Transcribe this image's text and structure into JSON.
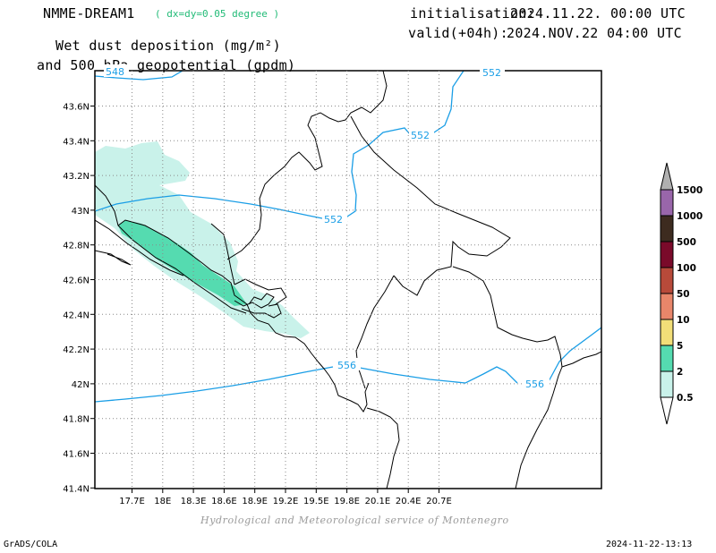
{
  "header": {
    "model": "NMME-DREAM1",
    "resolution": "( dx=dy=0.05 degree )",
    "init_label": "initialisation:",
    "init_value": "2024.11.22. 00:00 UTC",
    "valid_label": "valid(+04h):",
    "valid_value": "2024.NOV.22 04:00 UTC",
    "title_line1": "Wet dust deposition (mg/m²)",
    "title_line2": "and 500 hPa geopotential (gpdm)"
  },
  "map": {
    "lon_ticks": [
      "17.7E",
      "18E",
      "18.3E",
      "18.6E",
      "18.9E",
      "19.2E",
      "19.5E",
      "19.8E",
      "20.1E",
      "20.4E",
      "20.7E"
    ],
    "lat_ticks": [
      "43.6N",
      "43.4N",
      "43.2N",
      "43N",
      "42.8N",
      "42.6N",
      "42.4N",
      "42.2N",
      "42N",
      "41.8N",
      "41.6N",
      "41.4N"
    ],
    "contour_labels": [
      "548",
      "552",
      "552",
      "552",
      "556",
      "556"
    ],
    "contour_color": "#1a9ee6"
  },
  "legend": {
    "labels": [
      "1500",
      "1000",
      "500",
      "100",
      "50",
      "10",
      "5",
      "2",
      "0.5"
    ],
    "colors": [
      "#9966aa",
      "#3d2b1f",
      "#7a0a2a",
      "#b84a3a",
      "#e8866a",
      "#f2de78",
      "#55dbb0",
      "#c9f2ea"
    ],
    "top_arrow_color": "#b0b0b0",
    "bottom_arrow_color": "#ffffff"
  },
  "footer": {
    "credit": "Hydrological and Meteorological service of Montenegro",
    "software": "GrADS/COLA",
    "timestamp": "2024-11-22-13:13"
  }
}
